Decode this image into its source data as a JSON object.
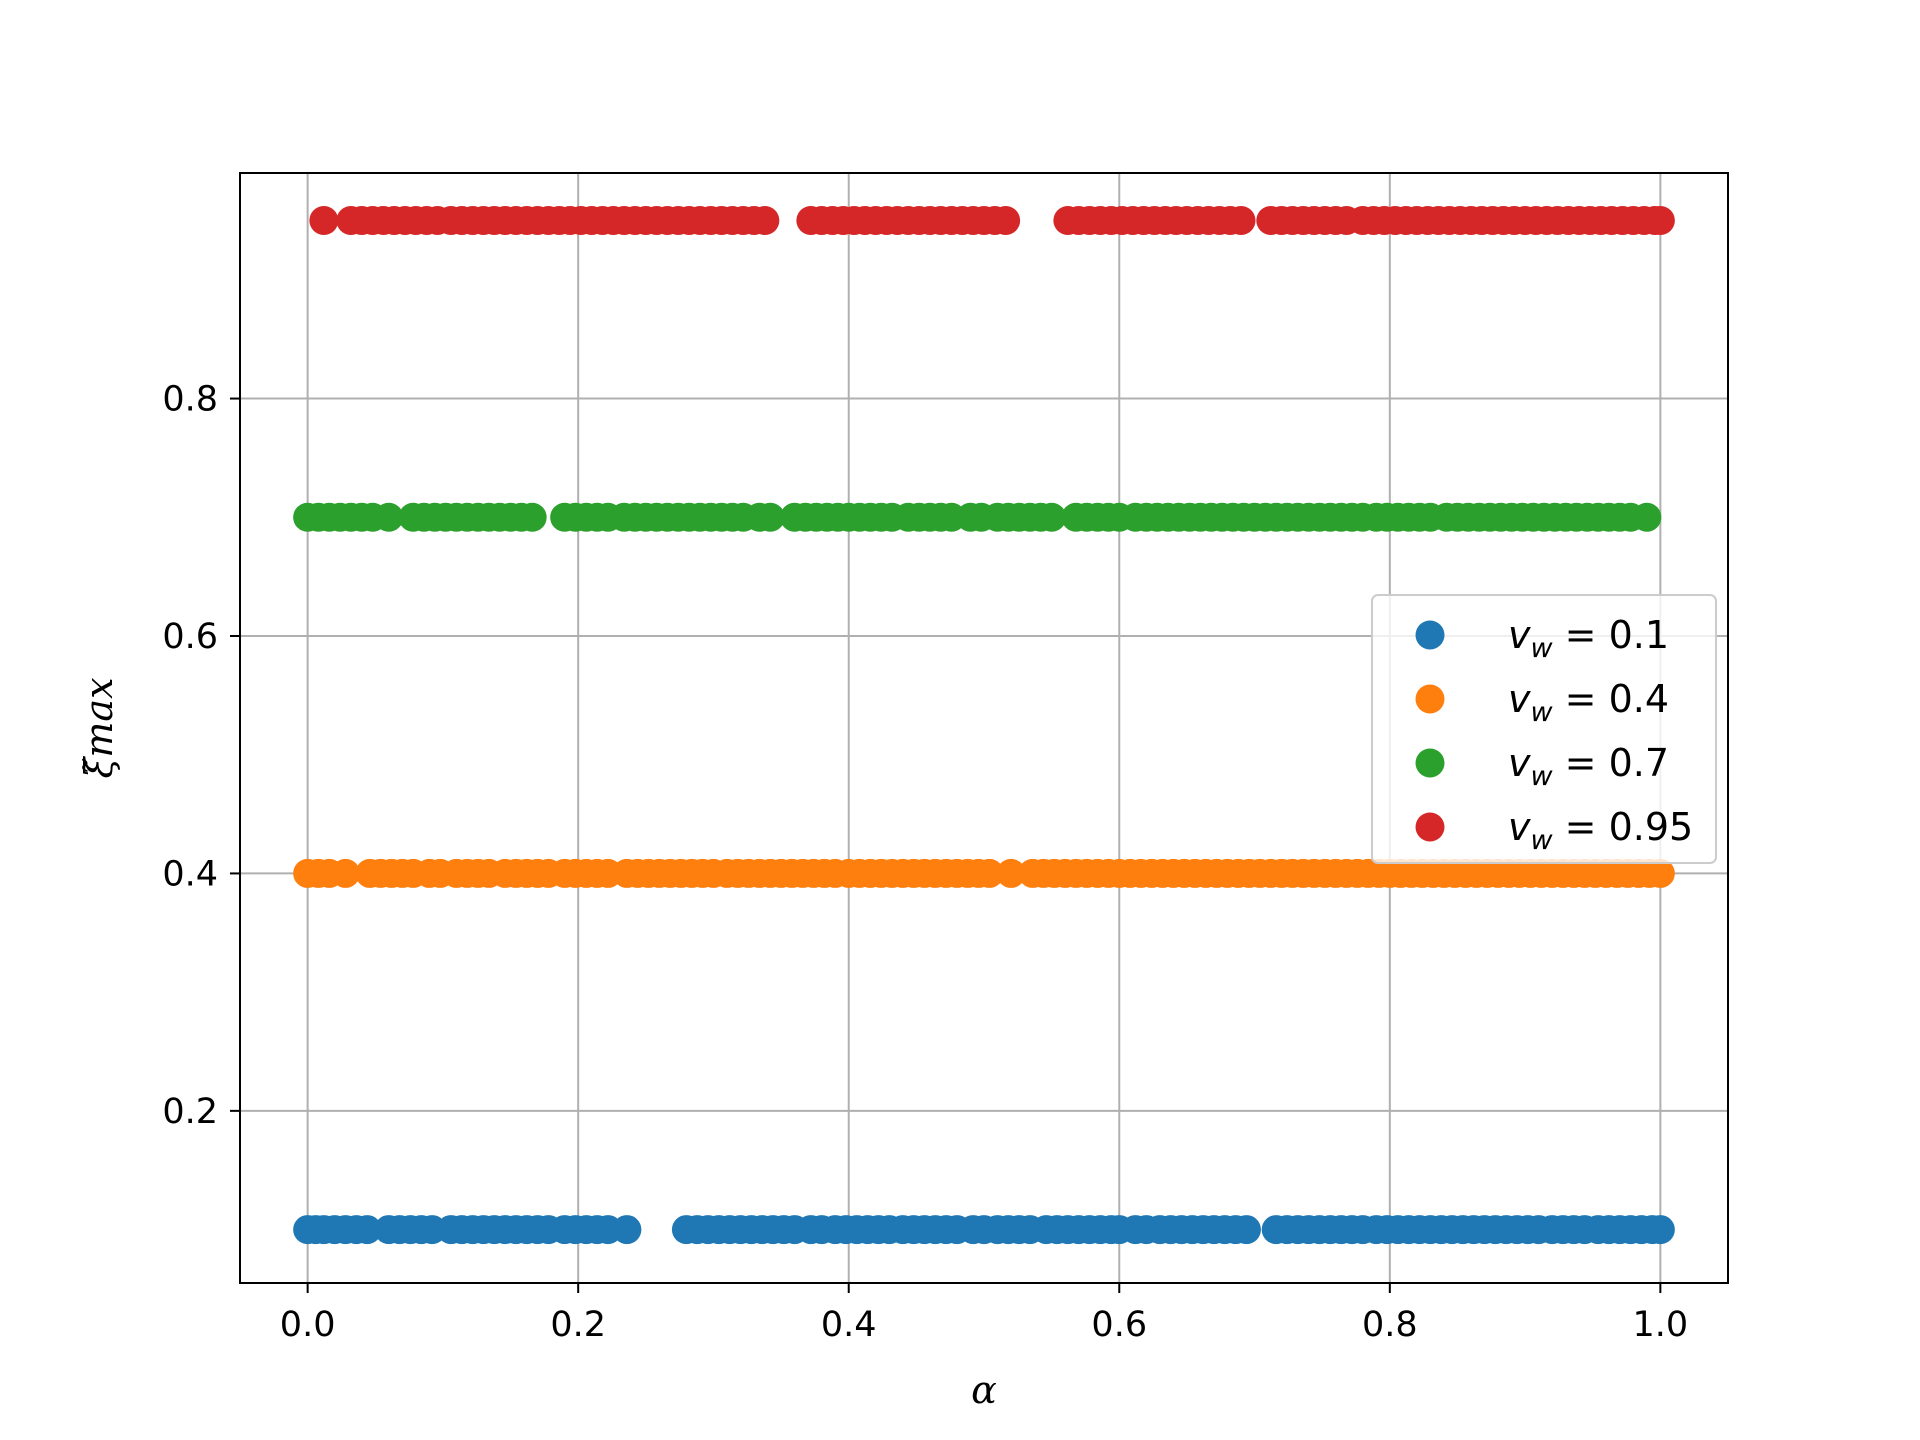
{
  "chart_data": {
    "type": "scatter",
    "title": "",
    "xlabel": "α",
    "ylabel": "ξ̃max",
    "xlim": [
      -0.05,
      1.05
    ],
    "ylim": [
      0.055,
      0.99
    ],
    "xticks": [
      0.0,
      0.2,
      0.4,
      0.6,
      0.8,
      1.0
    ],
    "xtick_labels": [
      "0.0",
      "0.2",
      "0.4",
      "0.6",
      "0.8",
      "1.0"
    ],
    "yticks": [
      0.2,
      0.4,
      0.6,
      0.8
    ],
    "ytick_labels": [
      "0.2",
      "0.4",
      "0.6",
      "0.8"
    ],
    "grid": true,
    "legend_position": "right",
    "series": [
      {
        "name": "v_w = 0.1",
        "label": {
          "base": "v",
          "sub": "w",
          "rest": " = 0.1"
        },
        "color": "#1f77b4",
        "y": 0.1,
        "x": [
          0.0,
          0.006,
          0.012,
          0.02,
          0.028,
          0.036,
          0.044,
          0.06,
          0.068,
          0.076,
          0.084,
          0.092,
          0.106,
          0.114,
          0.122,
          0.13,
          0.138,
          0.146,
          0.154,
          0.162,
          0.17,
          0.178,
          0.19,
          0.198,
          0.206,
          0.214,
          0.222,
          0.236,
          0.28,
          0.288,
          0.296,
          0.304,
          0.312,
          0.32,
          0.328,
          0.336,
          0.344,
          0.352,
          0.36,
          0.372,
          0.38,
          0.39,
          0.398,
          0.406,
          0.414,
          0.422,
          0.43,
          0.44,
          0.448,
          0.456,
          0.464,
          0.472,
          0.48,
          0.492,
          0.5,
          0.51,
          0.518,
          0.526,
          0.534,
          0.546,
          0.554,
          0.562,
          0.57,
          0.578,
          0.586,
          0.594,
          0.6,
          0.612,
          0.62,
          0.63,
          0.638,
          0.646,
          0.654,
          0.662,
          0.67,
          0.678,
          0.686,
          0.694,
          0.716,
          0.724,
          0.732,
          0.74,
          0.748,
          0.756,
          0.764,
          0.772,
          0.78,
          0.79,
          0.798,
          0.806,
          0.814,
          0.822,
          0.83,
          0.838,
          0.846,
          0.854,
          0.862,
          0.87,
          0.878,
          0.886,
          0.894,
          0.902,
          0.91,
          0.92,
          0.928,
          0.936,
          0.944,
          0.954,
          0.962,
          0.97,
          0.978,
          0.986,
          0.994,
          1.0
        ]
      },
      {
        "name": "v_w = 0.4",
        "label": {
          "base": "v",
          "sub": "w",
          "rest": " = 0.4"
        },
        "color": "#ff7f0e",
        "y": 0.4,
        "x": [
          0.0,
          0.008,
          0.016,
          0.028,
          0.046,
          0.054,
          0.062,
          0.07,
          0.078,
          0.09,
          0.098,
          0.11,
          0.118,
          0.126,
          0.134,
          0.146,
          0.154,
          0.162,
          0.17,
          0.178,
          0.19,
          0.198,
          0.206,
          0.214,
          0.222,
          0.236,
          0.244,
          0.252,
          0.26,
          0.268,
          0.276,
          0.284,
          0.292,
          0.3,
          0.31,
          0.318,
          0.326,
          0.334,
          0.342,
          0.35,
          0.358,
          0.366,
          0.374,
          0.382,
          0.39,
          0.4,
          0.408,
          0.416,
          0.424,
          0.432,
          0.44,
          0.448,
          0.456,
          0.464,
          0.472,
          0.48,
          0.488,
          0.496,
          0.504,
          0.52,
          0.536,
          0.544,
          0.552,
          0.56,
          0.568,
          0.576,
          0.584,
          0.592,
          0.6,
          0.608,
          0.616,
          0.624,
          0.632,
          0.64,
          0.648,
          0.656,
          0.664,
          0.672,
          0.68,
          0.688,
          0.696,
          0.704,
          0.712,
          0.72,
          0.728,
          0.736,
          0.744,
          0.752,
          0.76,
          0.768,
          0.776,
          0.784,
          0.792,
          0.8,
          0.808,
          0.816,
          0.824,
          0.832,
          0.84,
          0.848,
          0.856,
          0.864,
          0.872,
          0.88,
          0.888,
          0.896,
          0.904,
          0.912,
          0.92,
          0.928,
          0.936,
          0.944,
          0.952,
          0.96,
          0.968,
          0.976,
          0.984,
          0.992,
          1.0
        ]
      },
      {
        "name": "v_w = 0.7",
        "label": {
          "base": "v",
          "sub": "w",
          "rest": " = 0.7"
        },
        "color": "#2ca02c",
        "y": 0.7,
        "x": [
          0.0,
          0.008,
          0.016,
          0.024,
          0.032,
          0.04,
          0.048,
          0.06,
          0.078,
          0.086,
          0.094,
          0.102,
          0.11,
          0.118,
          0.126,
          0.134,
          0.142,
          0.15,
          0.158,
          0.166,
          0.19,
          0.198,
          0.206,
          0.214,
          0.222,
          0.234,
          0.242,
          0.25,
          0.258,
          0.266,
          0.274,
          0.282,
          0.29,
          0.298,
          0.306,
          0.314,
          0.322,
          0.334,
          0.342,
          0.36,
          0.368,
          0.376,
          0.384,
          0.392,
          0.4,
          0.408,
          0.416,
          0.424,
          0.432,
          0.444,
          0.452,
          0.46,
          0.468,
          0.476,
          0.49,
          0.498,
          0.51,
          0.518,
          0.526,
          0.534,
          0.542,
          0.55,
          0.568,
          0.576,
          0.584,
          0.592,
          0.6,
          0.612,
          0.62,
          0.628,
          0.636,
          0.644,
          0.652,
          0.66,
          0.668,
          0.676,
          0.684,
          0.692,
          0.7,
          0.708,
          0.716,
          0.724,
          0.732,
          0.74,
          0.748,
          0.756,
          0.764,
          0.772,
          0.78,
          0.79,
          0.798,
          0.806,
          0.814,
          0.822,
          0.83,
          0.842,
          0.85,
          0.858,
          0.866,
          0.874,
          0.882,
          0.89,
          0.898,
          0.906,
          0.914,
          0.922,
          0.93,
          0.938,
          0.946,
          0.954,
          0.962,
          0.97,
          0.978,
          0.99
        ]
      },
      {
        "name": "v_w = 0.95",
        "label": {
          "base": "v",
          "sub": "w",
          "rest": " = 0.95"
        },
        "color": "#d62728",
        "y": 0.95,
        "x": [
          0.012,
          0.032,
          0.04,
          0.048,
          0.056,
          0.064,
          0.072,
          0.08,
          0.088,
          0.096,
          0.106,
          0.114,
          0.122,
          0.13,
          0.138,
          0.146,
          0.154,
          0.162,
          0.17,
          0.178,
          0.186,
          0.194,
          0.202,
          0.21,
          0.218,
          0.226,
          0.234,
          0.242,
          0.25,
          0.258,
          0.266,
          0.274,
          0.282,
          0.29,
          0.298,
          0.306,
          0.314,
          0.322,
          0.33,
          0.338,
          0.372,
          0.38,
          0.388,
          0.396,
          0.404,
          0.412,
          0.42,
          0.428,
          0.436,
          0.444,
          0.452,
          0.46,
          0.468,
          0.476,
          0.484,
          0.492,
          0.5,
          0.508,
          0.516,
          0.562,
          0.57,
          0.578,
          0.586,
          0.594,
          0.602,
          0.61,
          0.618,
          0.626,
          0.634,
          0.642,
          0.65,
          0.658,
          0.666,
          0.674,
          0.682,
          0.69,
          0.712,
          0.72,
          0.728,
          0.736,
          0.744,
          0.752,
          0.76,
          0.768,
          0.78,
          0.788,
          0.796,
          0.804,
          0.812,
          0.82,
          0.828,
          0.836,
          0.844,
          0.852,
          0.86,
          0.868,
          0.876,
          0.884,
          0.892,
          0.9,
          0.908,
          0.916,
          0.924,
          0.932,
          0.94,
          0.948,
          0.956,
          0.964,
          0.972,
          0.98,
          0.988,
          0.996,
          1.0
        ]
      }
    ]
  }
}
